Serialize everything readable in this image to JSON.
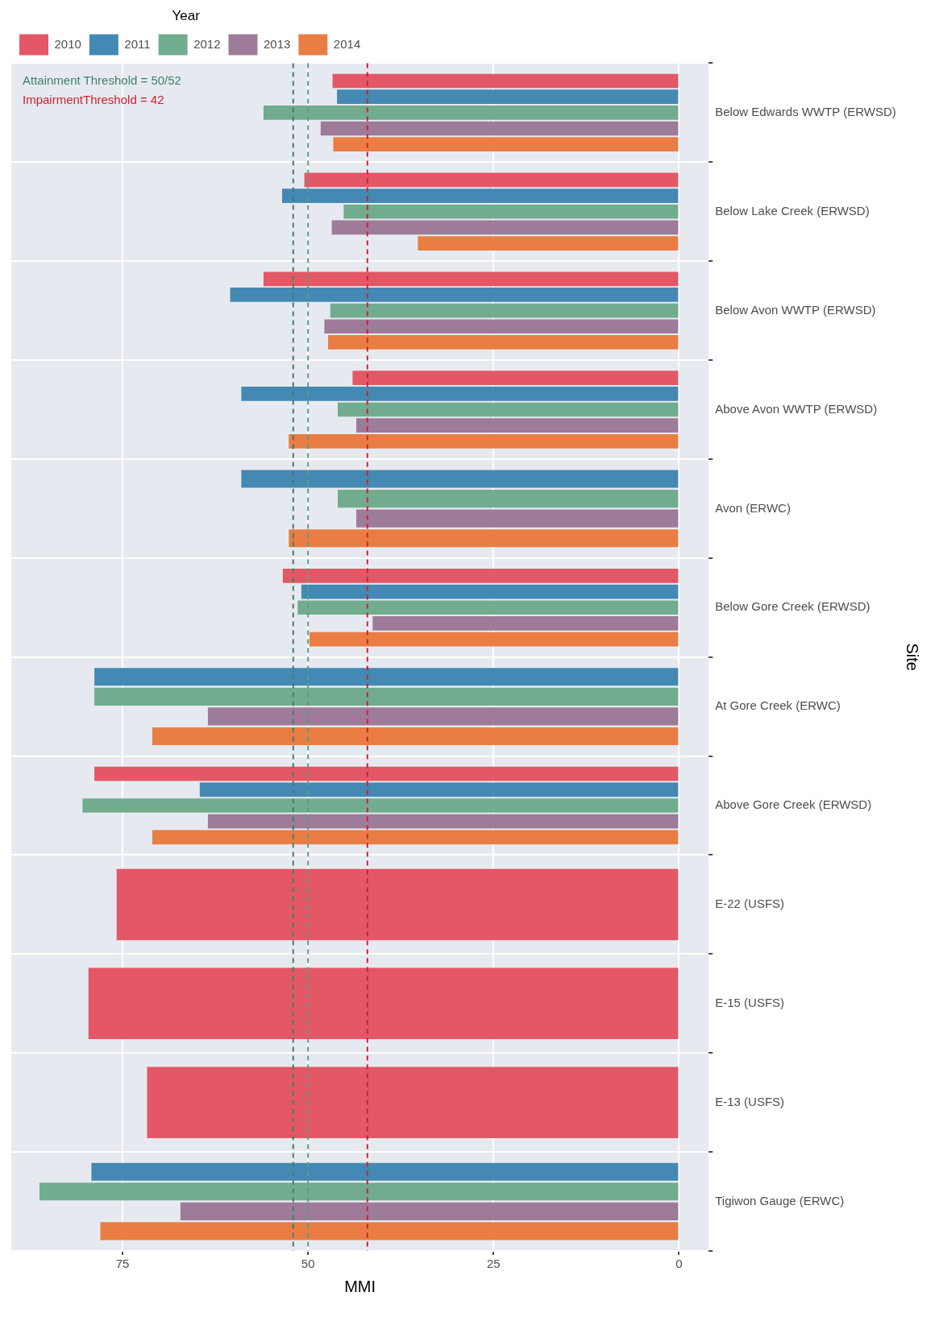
{
  "chart_data": {
    "type": "bar",
    "orientation": "horizontal",
    "xlabel": "MMI",
    "ylabel": "Site",
    "legend_title": "Year",
    "legend": "top left",
    "grid": true,
    "categories": [
      "Below Edwards WWTP (ERWSD)",
      "Below Lake Creek (ERWSD)",
      "Below Avon WWTP (ERWSD)",
      "Above Avon WWTP (ERWSD)",
      "Avon (ERWC)",
      "Below Gore Creek (ERWSD)",
      "At Gore Creek (ERWC)",
      "Above Gore Creek (ERWSD)",
      "E-22 (USFS)",
      "E-15 (USFS)",
      "E-13 (USFS)",
      "Tigiwon Gauge (ERWC)"
    ],
    "xlim": [
      90,
      -4
    ],
    "xticks": [
      0,
      25,
      50,
      75
    ],
    "series": [
      {
        "name": "2010",
        "color": "#e45766",
        "values": [
          46.7,
          50.5,
          56.0,
          44.0,
          null,
          53.4,
          null,
          78.8,
          75.8,
          79.6,
          71.7,
          null
        ]
      },
      {
        "name": "2011",
        "color": "#4489b4",
        "values": [
          46.1,
          53.5,
          60.5,
          59.0,
          59.0,
          50.9,
          78.8,
          64.6,
          null,
          null,
          null,
          79.2
        ]
      },
      {
        "name": "2012",
        "color": "#72ac8f",
        "values": [
          56.0,
          45.2,
          47.0,
          46.0,
          46.0,
          51.4,
          78.8,
          80.4,
          null,
          null,
          null,
          86.2
        ]
      },
      {
        "name": "2013",
        "color": "#9e7b98",
        "values": [
          48.3,
          46.8,
          47.8,
          43.5,
          43.5,
          41.3,
          63.5,
          63.5,
          null,
          null,
          null,
          67.2
        ]
      },
      {
        "name": "2014",
        "color": "#ea7d43",
        "values": [
          46.6,
          35.2,
          47.3,
          52.6,
          52.6,
          49.8,
          71.0,
          71.0,
          null,
          null,
          null,
          78.0
        ]
      }
    ],
    "ref_lines": [
      {
        "axis": "x",
        "value": 52,
        "label": "Attainment Threshold = 50/52",
        "color": "#3f7f6a",
        "line_style": "dashed"
      },
      {
        "axis": "x",
        "value": 50,
        "color": "#5f9a86",
        "line_style": "dashed"
      },
      {
        "axis": "x",
        "value": 42,
        "label": "ImpairmentThreshold = 42",
        "color": "#d0202f",
        "line_style": "dashed"
      }
    ]
  }
}
